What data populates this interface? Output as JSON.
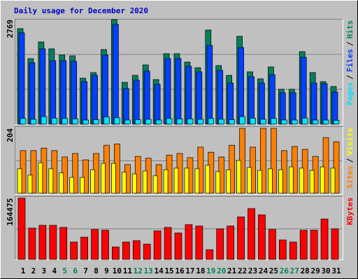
{
  "title": "Daily usage for December 2020",
  "legend_separator": "/",
  "chart_data": [
    {
      "type": "bar",
      "ylim": [
        0,
        2769
      ],
      "yticks": [
        2769
      ],
      "series": [
        {
          "name": "Pages",
          "color": "#00e0ff",
          "values": [
            150,
            130,
            200,
            160,
            150,
            140,
            110,
            120,
            190,
            170,
            110,
            120,
            130,
            110,
            150,
            140,
            140,
            130,
            150,
            130,
            120,
            200,
            160,
            130,
            150,
            110,
            110,
            160,
            110,
            110,
            100
          ]
        },
        {
          "name": "Files",
          "color": "#0040ff",
          "values": [
            2418,
            1625,
            1994,
            1680,
            1680,
            1662,
            1126,
            1292,
            1828,
            2640,
            942,
            1163,
            1403,
            1052,
            1735,
            1735,
            1532,
            1385,
            2086,
            1422,
            1089,
            2031,
            1255,
            1089,
            1311,
            831,
            831,
            1772,
            1089,
            1071,
            849
          ]
        },
        {
          "name": "Hits",
          "color": "#00805c",
          "values": [
            2529,
            1735,
            2178,
            1994,
            1828,
            1809,
            1218,
            1366,
            1975,
            2769,
            1108,
            1292,
            1569,
            1181,
            1865,
            1865,
            1643,
            1495,
            2492,
            1551,
            1292,
            2326,
            1385,
            1200,
            1514,
            923,
            923,
            1920,
            1366,
            1126,
            997
          ]
        }
      ]
    },
    {
      "type": "bar",
      "ylim": [
        0,
        204
      ],
      "yticks": [
        204
      ],
      "series": [
        {
          "name": "Sites",
          "color": "#ff8000",
          "values": [
            134,
            134,
            142,
            134,
            114,
            125,
            105,
            125,
            151,
            155,
            90,
            116,
            110,
            90,
            120,
            125,
            112,
            145,
            129,
            114,
            151,
            204,
            145,
            204,
            204,
            134,
            147,
            138,
            116,
            175,
            162
          ]
        },
        {
          "name": "Visits",
          "color": "#ffff00",
          "values": [
            77,
            57,
            96,
            77,
            64,
            50,
            50,
            74,
            94,
            94,
            66,
            61,
            70,
            55,
            74,
            79,
            79,
            77,
            88,
            68,
            74,
            103,
            81,
            72,
            77,
            74,
            83,
            79,
            72,
            83,
            79
          ]
        }
      ]
    },
    {
      "type": "bar",
      "ylim": [
        0,
        164475
      ],
      "yticks": [
        164475
      ],
      "categories": [
        1,
        2,
        3,
        4,
        5,
        6,
        7,
        8,
        9,
        10,
        11,
        12,
        13,
        14,
        15,
        16,
        17,
        18,
        19,
        20,
        21,
        22,
        23,
        24,
        25,
        26,
        27,
        28,
        29,
        30,
        31
      ],
      "category_colors": [
        "#000000",
        "#000000",
        "#000000",
        "#000000",
        "#00805c",
        "#00805c",
        "#000000",
        "#000000",
        "#000000",
        "#000000",
        "#000000",
        "#00805c",
        "#00805c",
        "#000000",
        "#000000",
        "#000000",
        "#000000",
        "#000000",
        "#00805c",
        "#00805c",
        "#000000",
        "#000000",
        "#000000",
        "#000000",
        "#000000",
        "#00805c",
        "#00805c",
        "#000000",
        "#000000",
        "#000000",
        "#000000"
      ],
      "series": [
        {
          "name": "KBytes",
          "color": "#ff0000",
          "values": [
            164475,
            84105,
            91581,
            91581,
            85974,
            46725,
            59808,
            80367,
            78498,
            33642,
            46725,
            50463,
            41118,
            76629,
            85974,
            71022,
            93450,
            89712,
            26166,
            82236,
            89712,
            114009,
            136437,
            119616,
            80367,
            52332,
            46725,
            78498,
            78498,
            108402,
            82236
          ]
        }
      ]
    }
  ]
}
